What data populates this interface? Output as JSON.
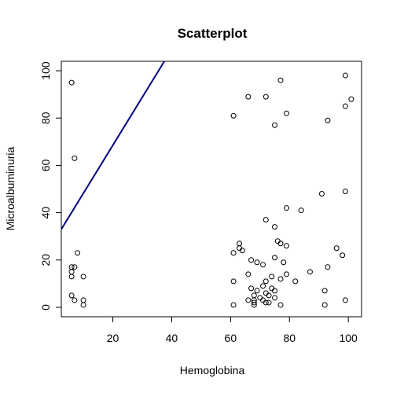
{
  "chart_data": {
    "type": "scatter",
    "title": "Scatterplot",
    "xlabel": "Hemoglobina",
    "ylabel": "Microalbuminuria",
    "xlim": [
      2.5,
      104.5
    ],
    "ylim": [
      -4,
      104
    ],
    "x_ticks": [
      20,
      40,
      60,
      80,
      100
    ],
    "x_tick_labels": [
      "20",
      "40",
      "60",
      "80",
      "100"
    ],
    "y_ticks": [
      0,
      20,
      40,
      60,
      80,
      100
    ],
    "y_tick_labels": [
      "0",
      "20",
      "40",
      "60",
      "80",
      "100"
    ],
    "grid": false,
    "legend": "none",
    "points": [
      {
        "x": 6,
        "y": 95
      },
      {
        "x": 7,
        "y": 63
      },
      {
        "x": 8,
        "y": 23
      },
      {
        "x": 6,
        "y": 17
      },
      {
        "x": 7,
        "y": 17
      },
      {
        "x": 6,
        "y": 15
      },
      {
        "x": 6,
        "y": 13
      },
      {
        "x": 10,
        "y": 13
      },
      {
        "x": 6,
        "y": 5
      },
      {
        "x": 7,
        "y": 3
      },
      {
        "x": 10,
        "y": 3
      },
      {
        "x": 10,
        "y": 1
      },
      {
        "x": 61,
        "y": 81
      },
      {
        "x": 66,
        "y": 89
      },
      {
        "x": 72,
        "y": 89
      },
      {
        "x": 77,
        "y": 96
      },
      {
        "x": 79,
        "y": 82
      },
      {
        "x": 75,
        "y": 77
      },
      {
        "x": 93,
        "y": 79
      },
      {
        "x": 99,
        "y": 85
      },
      {
        "x": 101,
        "y": 88
      },
      {
        "x": 99,
        "y": 98
      },
      {
        "x": 99,
        "y": 49
      },
      {
        "x": 91,
        "y": 48
      },
      {
        "x": 79,
        "y": 42
      },
      {
        "x": 84,
        "y": 41
      },
      {
        "x": 72,
        "y": 37
      },
      {
        "x": 75,
        "y": 34
      },
      {
        "x": 76,
        "y": 28
      },
      {
        "x": 77,
        "y": 27
      },
      {
        "x": 79,
        "y": 26
      },
      {
        "x": 63,
        "y": 27
      },
      {
        "x": 63,
        "y": 25
      },
      {
        "x": 64,
        "y": 24
      },
      {
        "x": 61,
        "y": 23
      },
      {
        "x": 96,
        "y": 25
      },
      {
        "x": 98,
        "y": 22
      },
      {
        "x": 75,
        "y": 21
      },
      {
        "x": 67,
        "y": 20
      },
      {
        "x": 69,
        "y": 19
      },
      {
        "x": 71,
        "y": 18
      },
      {
        "x": 78,
        "y": 19
      },
      {
        "x": 93,
        "y": 17
      },
      {
        "x": 87,
        "y": 15
      },
      {
        "x": 66,
        "y": 14
      },
      {
        "x": 79,
        "y": 14
      },
      {
        "x": 74,
        "y": 13
      },
      {
        "x": 72,
        "y": 11
      },
      {
        "x": 77,
        "y": 12
      },
      {
        "x": 82,
        "y": 11
      },
      {
        "x": 61,
        "y": 11
      },
      {
        "x": 71,
        "y": 9
      },
      {
        "x": 67,
        "y": 8
      },
      {
        "x": 74,
        "y": 8
      },
      {
        "x": 69,
        "y": 7
      },
      {
        "x": 75,
        "y": 7
      },
      {
        "x": 92,
        "y": 7
      },
      {
        "x": 72,
        "y": 6
      },
      {
        "x": 68,
        "y": 5
      },
      {
        "x": 73,
        "y": 5
      },
      {
        "x": 70,
        "y": 4
      },
      {
        "x": 75,
        "y": 4
      },
      {
        "x": 66,
        "y": 3
      },
      {
        "x": 68,
        "y": 3
      },
      {
        "x": 71,
        "y": 3
      },
      {
        "x": 99,
        "y": 3
      },
      {
        "x": 72,
        "y": 2
      },
      {
        "x": 73,
        "y": 2
      },
      {
        "x": 68,
        "y": 2
      },
      {
        "x": 61,
        "y": 1
      },
      {
        "x": 68,
        "y": 1
      },
      {
        "x": 77,
        "y": 1
      },
      {
        "x": 92,
        "y": 1
      }
    ],
    "line": {
      "x": [
        2.5,
        37.5
      ],
      "y": [
        33,
        104
      ],
      "color": "#00007f"
    },
    "point_color": "#000000"
  }
}
